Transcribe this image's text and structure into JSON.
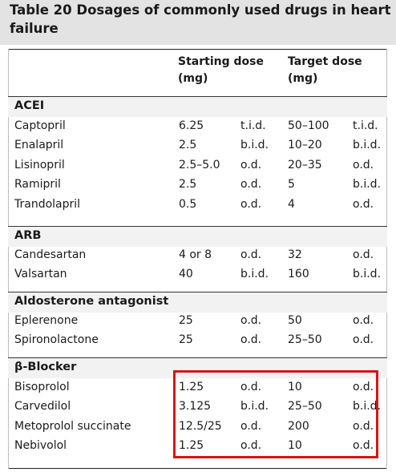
{
  "title": {
    "line1": "Table 20  Dosages of commonly used drugs in heart",
    "line2": "failure"
  },
  "headers": {
    "starting_dose": [
      "Starting dose",
      "(mg)"
    ],
    "target_dose": [
      "Target dose",
      "(mg)"
    ]
  },
  "sections": [
    {
      "label": "ACEI",
      "rows": [
        {
          "drug": "Captopril",
          "start": "6.25",
          "start_freq": "t.i.d.",
          "target": "50–100",
          "target_freq": "t.i.d."
        },
        {
          "drug": "Enalapril",
          "start": "2.5",
          "start_freq": "b.i.d.",
          "target": "10–20",
          "target_freq": "b.i.d."
        },
        {
          "drug": "Lisinopril",
          "start": "2.5–5.0",
          "start_freq": "o.d.",
          "target": "20–35",
          "target_freq": "o.d."
        },
        {
          "drug": "Ramipril",
          "start": "2.5",
          "start_freq": "o.d.",
          "target": "5",
          "target_freq": "b.i.d."
        },
        {
          "drug": "Trandolapril",
          "start": "0.5",
          "start_freq": "o.d.",
          "target": "4",
          "target_freq": "o.d."
        }
      ]
    },
    {
      "label": "ARB",
      "rows": [
        {
          "drug": "Candesartan",
          "start": "4 or 8",
          "start_freq": "o.d.",
          "target": "32",
          "target_freq": "o.d."
        },
        {
          "drug": "Valsartan",
          "start": "40",
          "start_freq": "b.i.d.",
          "target": "160",
          "target_freq": "b.i.d."
        }
      ]
    },
    {
      "label": "Aldosterone antagonist",
      "rows": [
        {
          "drug": "Eplerenone",
          "start": "25",
          "start_freq": "o.d.",
          "target": "50",
          "target_freq": "o.d."
        },
        {
          "drug": "Spironolactone",
          "start": "25",
          "start_freq": "o.d.",
          "target": "25–50",
          "target_freq": "o.d."
        }
      ]
    },
    {
      "label": "β-Blocker",
      "rows": [
        {
          "drug": "Bisoprolol",
          "start": "1.25",
          "start_freq": "o.d.",
          "target": "10",
          "target_freq": "o.d."
        },
        {
          "drug": "Carvedilol",
          "start": "3.125",
          "start_freq": "b.i.d.",
          "target": "25–50",
          "target_freq": "b.i.d."
        },
        {
          "drug": "Metoprolol succinate",
          "start": "12.5/25",
          "start_freq": "o.d.",
          "target": "200",
          "target_freq": "o.d."
        },
        {
          "drug": "Nebivolol",
          "start": "1.25",
          "start_freq": "o.d.",
          "target": "10",
          "target_freq": "o.d."
        }
      ]
    }
  ],
  "colors": {
    "title_background": "#e3e3e3",
    "section_background": "#f2f2f2",
    "highlight": "#d41515"
  }
}
